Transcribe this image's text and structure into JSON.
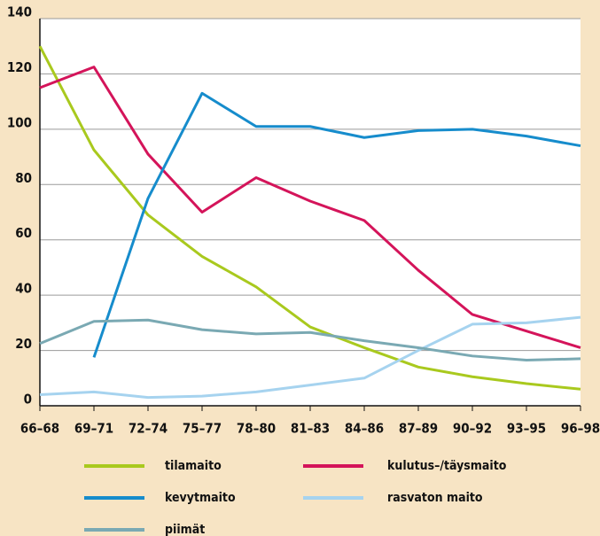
{
  "chart_data": {
    "type": "line",
    "categories": [
      "66–68",
      "69–71",
      "72–74",
      "75–77",
      "78–80",
      "81–83",
      "84–86",
      "87–89",
      "90–92",
      "93–95",
      "96–98"
    ],
    "series": [
      {
        "name": "tilamaito",
        "color": "#a9c91e",
        "values": [
          130,
          92.5,
          69,
          54,
          43,
          28.5,
          21,
          14,
          10.5,
          8,
          6
        ]
      },
      {
        "name": "kulutus–/täysmaito",
        "color": "#d4145a",
        "values": [
          115,
          122.5,
          91,
          70,
          82.5,
          74,
          67,
          49,
          33,
          27,
          21
        ]
      },
      {
        "name": "kevytmaito",
        "color": "#168ccc",
        "values": [
          null,
          17.5,
          75,
          113,
          101,
          101,
          97,
          99.5,
          100,
          97.5,
          94
        ]
      },
      {
        "name": "rasvaton maito",
        "color": "#a6d3ef",
        "values": [
          4,
          5,
          3,
          3.5,
          5,
          7.5,
          10,
          20,
          29.5,
          30,
          32
        ]
      },
      {
        "name": "piimät",
        "color": "#7aa9b3",
        "values": [
          22.5,
          30.5,
          31,
          27.5,
          26,
          26.5,
          23.5,
          21,
          18,
          16.5,
          17
        ]
      }
    ],
    "ylim": [
      0,
      140
    ],
    "yticks": [
      0,
      20,
      40,
      60,
      80,
      100,
      120,
      140
    ],
    "grid": true
  }
}
